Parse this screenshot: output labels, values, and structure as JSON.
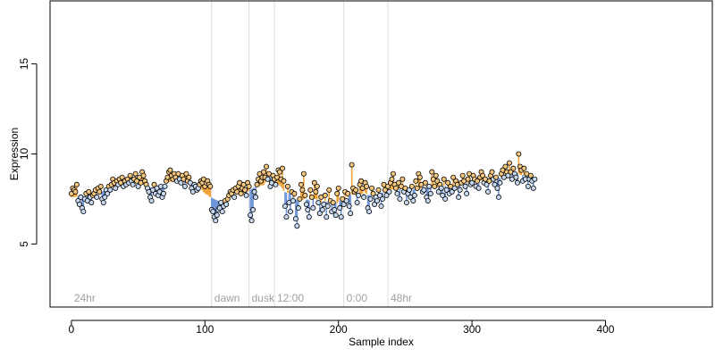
{
  "chart_data": {
    "type": "scatter",
    "title": "",
    "xlabel": "Sample index",
    "ylabel": "Expression",
    "xlim": [
      -16,
      480
    ],
    "ylim": [
      1.5,
      18.5
    ],
    "x_ticks": [
      0,
      100,
      200,
      300,
      400
    ],
    "y_ticks": [
      5,
      10,
      15
    ],
    "grid": false,
    "legend": "none",
    "colors": {
      "point_fill_high": "#F5C77E",
      "point_fill_low": "#C7D9F2",
      "point_stroke": "#000000",
      "segment_high": "#F0A43A",
      "segment_low": "#6F95D9",
      "marker_line": "#DDDDDD",
      "marker_text": "#A0A0A0"
    },
    "markers": [
      {
        "x": 0,
        "label": "24hr",
        "line": false
      },
      {
        "x": 105,
        "label": "dawn",
        "line": true
      },
      {
        "x": 133,
        "label": "dusk",
        "line": true
      },
      {
        "x": 152,
        "label": "12:00",
        "line": true
      },
      {
        "x": 204,
        "label": "0:00",
        "line": true
      },
      {
        "x": 237,
        "label": "48hr",
        "line": true
      }
    ],
    "series": [
      {
        "x_start": 0,
        "y": [
          7.8,
          8.1,
          8.0,
          7.9,
          8.3,
          7.4,
          7.2,
          7.6,
          7.0,
          6.8,
          7.5,
          7.8,
          7.4,
          7.9,
          7.6,
          7.3,
          7.7,
          7.8,
          8.0,
          7.6,
          8.1,
          7.9,
          8.2,
          7.5,
          7.3,
          7.6,
          8.0,
          7.8,
          8.2,
          8.0,
          8.3,
          8.6,
          8.4,
          8.1,
          8.5,
          8.3,
          8.6,
          8.4,
          8.7,
          8.2,
          8.5,
          8.3,
          8.6,
          8.4,
          8.8,
          8.5,
          8.3,
          8.6,
          8.9,
          8.5,
          8.2,
          8.7,
          8.4,
          9.0,
          8.8,
          8.5,
          8.3,
          8.1,
          7.9,
          7.6,
          7.4,
          8.0,
          8.3,
          7.8,
          8.1,
          7.7,
          7.9,
          8.2,
          7.6,
          7.8,
          8.2,
          8.5,
          8.7,
          9.0,
          9.1,
          8.8,
          8.6,
          8.9,
          8.7,
          8.5,
          8.9,
          8.6,
          8.4,
          8.8,
          8.6,
          8.2,
          8.9,
          8.5,
          8.7,
          8.4,
          8.1,
          7.9,
          8.3,
          8.2,
          8.0,
          8.1,
          8.3,
          8.5,
          8.4,
          8.6,
          8.2,
          8.4,
          8.5,
          8.3,
          8.2,
          6.9,
          6.8,
          6.5,
          6.3,
          6.6,
          6.9,
          7.0,
          7.3,
          6.8,
          7.1,
          7.4,
          7.2,
          7.5,
          7.7,
          7.9,
          7.8,
          8.0,
          7.6,
          8.1,
          7.9,
          8.2,
          8.4,
          7.8,
          8.1,
          8.3,
          8.0,
          7.7,
          8.4,
          8.2,
          6.6,
          6.3,
          6.9,
          7.9,
          7.6,
          8.3,
          8.6,
          8.9,
          8.5,
          8.7,
          9.0,
          8.7,
          9.3,
          8.6,
          8.9,
          8.2,
          8.4,
          8.8,
          8.6,
          8.3,
          8.7,
          9.1,
          9.0,
          8.6,
          9.2,
          8.5,
          7.1,
          6.5,
          8.2,
          7.3,
          6.8,
          7.9,
          7.4,
          7.8,
          6.4,
          6.0,
          7.0,
          7.5,
          8.3,
          8.0,
          8.9,
          7.7,
          7.2,
          6.9,
          6.5,
          8.0,
          7.6,
          7.0,
          8.4,
          7.9,
          8.2,
          7.3,
          6.7,
          7.6,
          6.9,
          7.2,
          7.7,
          6.5,
          7.1,
          8.0,
          7.4,
          6.8,
          7.3,
          6.9,
          6.6,
          7.8,
          8.1,
          7.0,
          6.5,
          7.5,
          7.2,
          7.9,
          7.4,
          7.8,
          7.1,
          6.7,
          9.4,
          8.1,
          7.9,
          8.0,
          7.3,
          7.7,
          8.3,
          8.5,
          8.1,
          7.6,
          8.4,
          8.2,
          7.0,
          6.8,
          7.5,
          8.1,
          7.8,
          7.2,
          7.6,
          7.4,
          8.0,
          7.7,
          7.1,
          7.5,
          8.3,
          8.0,
          7.7,
          8.2,
          7.9,
          8.4,
          8.6,
          8.9,
          8.3,
          8.1,
          7.8,
          8.4,
          7.5,
          8.2,
          8.6,
          7.9,
          8.1,
          7.3,
          7.8,
          8.0,
          7.6,
          8.2,
          7.4,
          7.7,
          8.5,
          8.1,
          8.9,
          8.7,
          8.3,
          7.9,
          8.0,
          8.4,
          7.6,
          7.4,
          8.2,
          7.8,
          9.0,
          8.6,
          8.2,
          8.8,
          8.5,
          7.9,
          8.3,
          8.1,
          7.7,
          8.6,
          7.5,
          8.0,
          8.4,
          7.8,
          8.2,
          7.9,
          8.7,
          8.1,
          8.5,
          8.3,
          7.6,
          8.0,
          8.4,
          8.8,
          8.5,
          8.2,
          7.8,
          8.6,
          8.9,
          8.3,
          8.4,
          8.8,
          8.6,
          8.2,
          8.5,
          8.1,
          8.7,
          9.0,
          8.8,
          8.4,
          8.6,
          8.3,
          7.9,
          8.5,
          8.8,
          9.0,
          8.6,
          8.3,
          8.7,
          8.1,
          7.6,
          8.4,
          8.9,
          9.1,
          8.7,
          9.3,
          9.0,
          8.8,
          9.5,
          9.0,
          8.6,
          9.2,
          8.9,
          8.7,
          8.4,
          10.0,
          9.3,
          9.1,
          8.5,
          9.2,
          8.6,
          8.9,
          8.2,
          8.6,
          8.8,
          8.5,
          8.1,
          8.6
        ]
      }
    ]
  }
}
